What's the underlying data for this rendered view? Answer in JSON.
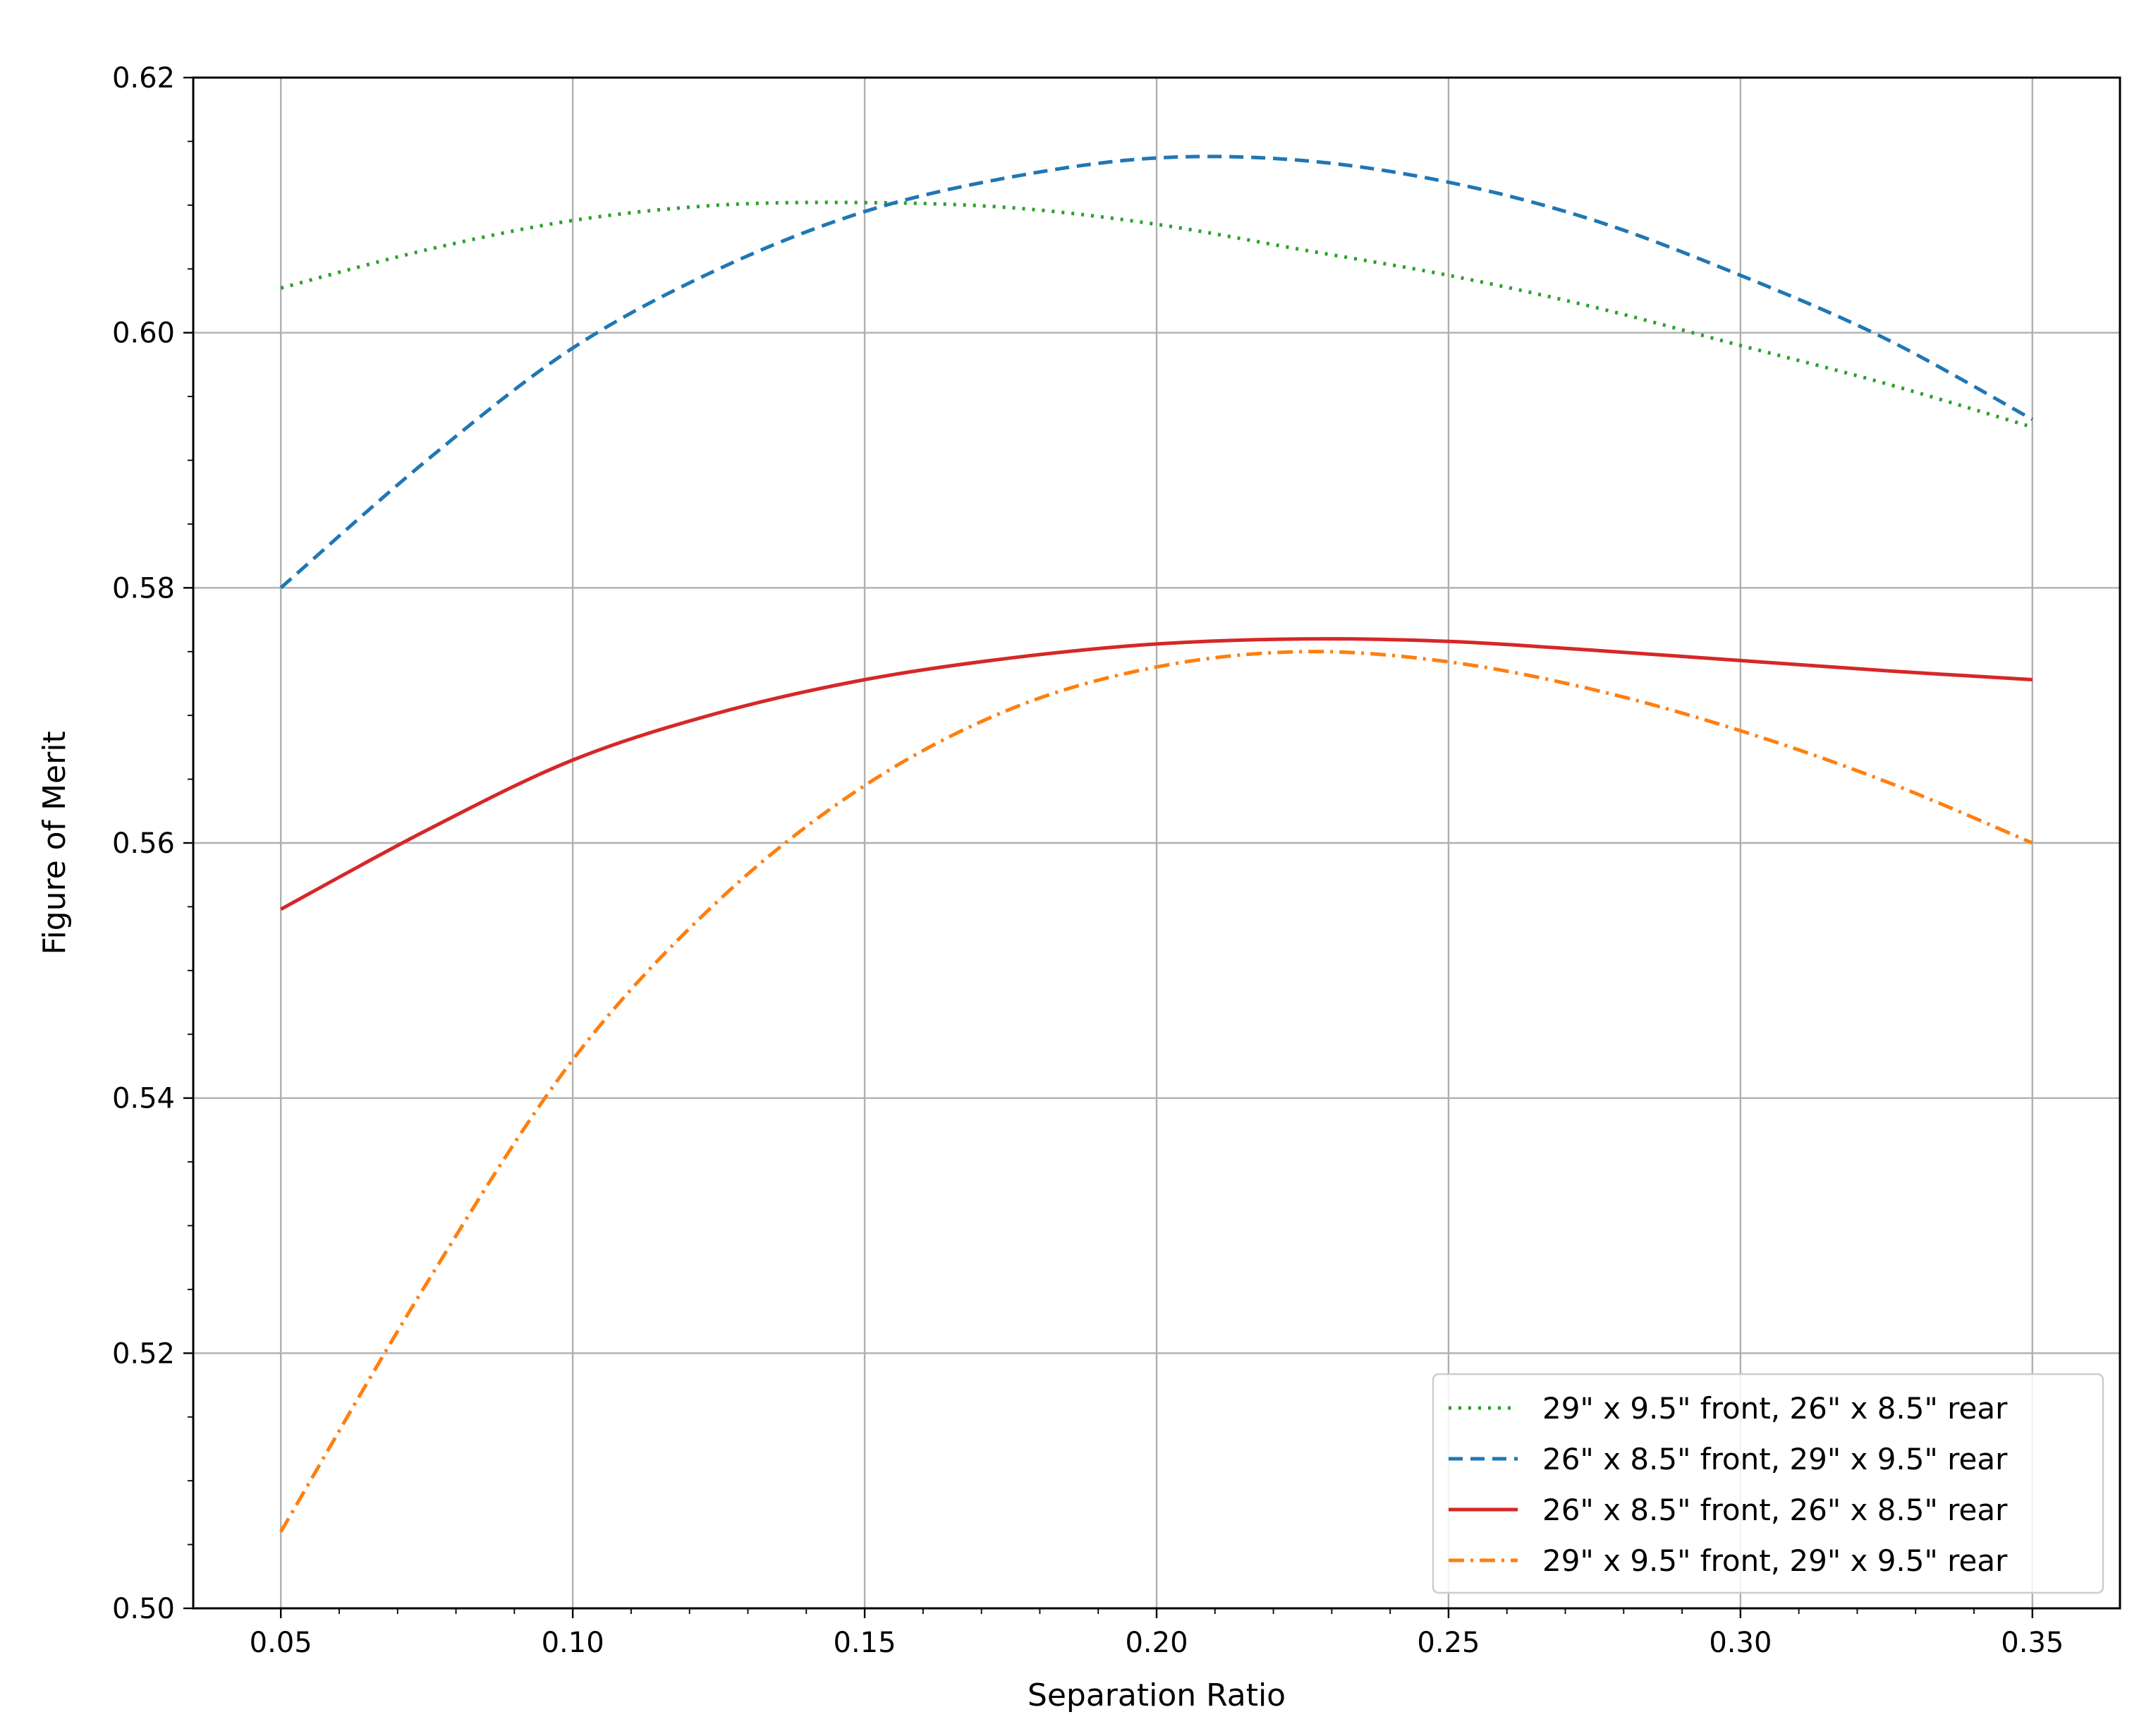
{
  "chart_data": {
    "type": "line",
    "title": "",
    "xlabel": "Separation Ratio",
    "ylabel": "Figure of Merit",
    "xlim": [
      0.035,
      0.365
    ],
    "ylim": [
      0.5,
      0.62
    ],
    "xticks": [
      0.05,
      0.1,
      0.15,
      0.2,
      0.25,
      0.3,
      0.35
    ],
    "xtick_labels": [
      "0.05",
      "0.10",
      "0.15",
      "0.20",
      "0.25",
      "0.30",
      "0.35"
    ],
    "yticks": [
      0.5,
      0.52,
      0.54,
      0.56,
      0.58,
      0.6,
      0.62
    ],
    "ytick_labels": [
      "0.50",
      "0.52",
      "0.54",
      "0.56",
      "0.58",
      "0.60",
      "0.62"
    ],
    "grid": true,
    "legend_position": "lower-right",
    "x": [
      0.05,
      0.075,
      0.1,
      0.125,
      0.15,
      0.175,
      0.2,
      0.225,
      0.25,
      0.275,
      0.3,
      0.325,
      0.35
    ],
    "series": [
      {
        "name": "29\" x 9.5\" front, 26\" x 8.5\" rear",
        "color": "#2ca02c",
        "style": "dotted",
        "values": [
          0.6035,
          0.6065,
          0.6088,
          0.61,
          0.6102,
          0.6098,
          0.6085,
          0.6065,
          0.6045,
          0.602,
          0.599,
          0.596,
          0.5926
        ]
      },
      {
        "name": "26\" x 8.5\" front, 29\" x 9.5\" rear",
        "color": "#1f77b4",
        "style": "dashed",
        "values": [
          0.58,
          0.59,
          0.5988,
          0.605,
          0.6095,
          0.6122,
          0.6137,
          0.6135,
          0.6118,
          0.6088,
          0.6045,
          0.5995,
          0.5932
        ]
      },
      {
        "name": "26\" x 8.5\" front, 26\" x 8.5\" rear",
        "color": "#d62728",
        "style": "solid",
        "values": [
          0.5548,
          0.561,
          0.5665,
          0.5702,
          0.5728,
          0.5745,
          0.5756,
          0.576,
          0.5758,
          0.5751,
          0.5743,
          0.5735,
          0.5728
        ]
      },
      {
        "name": "29\" x 9.5\" front, 29\" x 9.5\" rear",
        "color": "#ff7f0e",
        "style": "dashdot",
        "values": [
          0.506,
          0.5255,
          0.543,
          0.5555,
          0.5645,
          0.5705,
          0.5738,
          0.575,
          0.5742,
          0.572,
          0.5688,
          0.5648,
          0.56
        ]
      }
    ]
  }
}
